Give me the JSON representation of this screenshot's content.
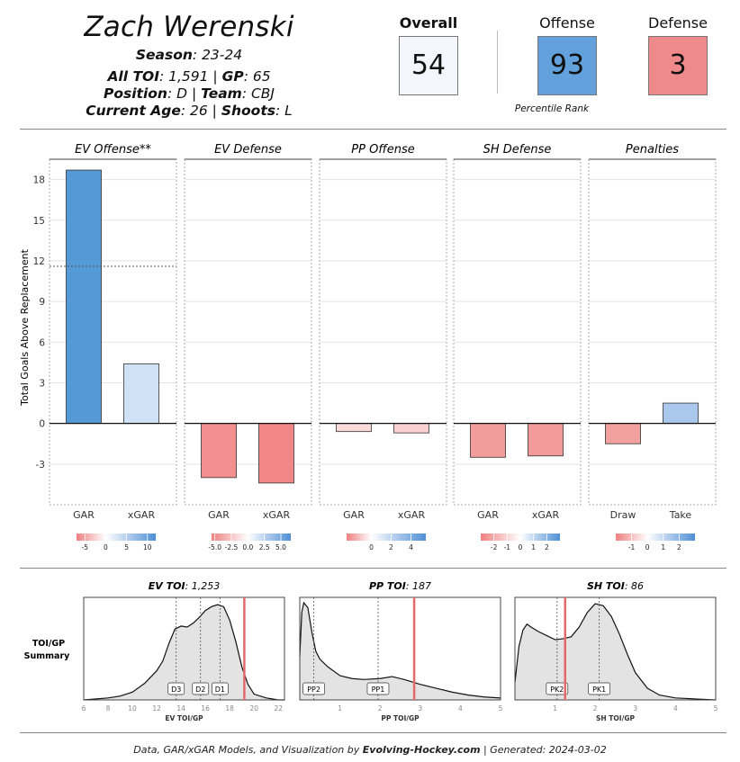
{
  "header": {
    "name": "Zach Werenski",
    "season_label": "Season",
    "season": ": 23-24",
    "toi_label": "All TOI",
    "toi": ": 1,591 | ",
    "gp_label": "GP",
    "gp": ": 65",
    "position_label": "Position",
    "position": ": D | ",
    "team_label": "Team",
    "team": ": CBJ",
    "age_label": "Current Age",
    "age": ": 26 | ",
    "shoots_label": "Shoots",
    "shoots": ": L"
  },
  "scores": {
    "overall_label": "Overall",
    "overall": "54",
    "offense_label": "Offense",
    "offense": "93",
    "defense_label": "Defense",
    "defense": "3",
    "percentile_label": "Percentile Rank",
    "colors": {
      "overall": "#f3f6fc",
      "offense": "#62a1dc",
      "defense": "#f08a8a"
    }
  },
  "footer": {
    "prefix": "Data, GAR/xGAR Models, and Visualization by ",
    "brand": "Evolving-Hockey.com",
    "suffix": " | Generated: 2024-03-02"
  },
  "chart_data": [
    {
      "type": "bar",
      "ylabel": "Total Goals Above Replacement",
      "ylim": [
        -6,
        19.5
      ],
      "yticks": [
        -3,
        0,
        3,
        6,
        9,
        12,
        15,
        18
      ],
      "reference_line": 11.6,
      "panels": [
        {
          "title": "EV Offense**",
          "categories": [
            "GAR",
            "xGAR"
          ],
          "values": [
            18.7,
            4.4
          ],
          "colors": [
            "#5599d6",
            "#d0e0f5"
          ],
          "legend": {
            "ticks": [
              "-5",
              "0",
              "5",
              "10"
            ],
            "min": -7,
            "max": 12
          }
        },
        {
          "title": "EV Defense",
          "categories": [
            "GAR",
            "xGAR"
          ],
          "values": [
            -4.0,
            -4.4
          ],
          "colors": [
            "#f3908f",
            "#f28787"
          ],
          "legend": {
            "ticks": [
              "-5.0",
              "-2.5",
              "0.0",
              "2.5",
              "5.0"
            ],
            "min": -5.5,
            "max": 6.5
          }
        },
        {
          "title": "PP Offense",
          "categories": [
            "GAR",
            "xGAR"
          ],
          "values": [
            -0.6,
            -0.7
          ],
          "colors": [
            "#fbdada",
            "#fad0d0"
          ],
          "legend": {
            "ticks": [
              "0",
              "2",
              "4"
            ],
            "min": -2.5,
            "max": 5.5
          }
        },
        {
          "title": "SH Defense",
          "categories": [
            "GAR",
            "xGAR"
          ],
          "values": [
            -2.5,
            -2.4
          ],
          "colors": [
            "#f39c9c",
            "#f29999"
          ],
          "legend": {
            "ticks": [
              "-2",
              "-1",
              "0",
              "1",
              "2"
            ],
            "min": -3,
            "max": 3
          }
        },
        {
          "title": "Penalties",
          "categories": [
            "Draw",
            "Take"
          ],
          "values": [
            -1.5,
            1.5
          ],
          "colors": [
            "#f3a0a0",
            "#a9c8ec"
          ],
          "legend": {
            "ticks": [
              "-1",
              "0",
              "1",
              "2"
            ],
            "min": -2,
            "max": 3
          }
        }
      ]
    },
    {
      "type": "area",
      "summary_label": "TOI/GP Summary",
      "panels": [
        {
          "title_label": "EV TOI",
          "title_value": ": 1,253",
          "xlabel": "EV TOI/GP",
          "xlim": [
            6,
            22.5
          ],
          "xticks": [
            6,
            8,
            10,
            12,
            14,
            16,
            18,
            20,
            22
          ],
          "player_value": 19.2,
          "markers": [
            {
              "label": "D3",
              "x": 13.6
            },
            {
              "label": "D2",
              "x": 15.6
            },
            {
              "label": "D1",
              "x": 17.2
            }
          ],
          "density_x": [
            6,
            8,
            9,
            10,
            11,
            12,
            12.5,
            13,
            13.5,
            14,
            14.5,
            15,
            15.5,
            16,
            16.5,
            17,
            17.5,
            18,
            18.5,
            19,
            19.5,
            20,
            21,
            22,
            22.5
          ],
          "density_y": [
            0.0,
            0.02,
            0.04,
            0.08,
            0.17,
            0.3,
            0.4,
            0.58,
            0.73,
            0.76,
            0.75,
            0.79,
            0.85,
            0.92,
            0.96,
            0.98,
            0.96,
            0.82,
            0.6,
            0.34,
            0.16,
            0.06,
            0.02,
            0.0,
            0.0
          ]
        },
        {
          "title_label": "PP TOI",
          "title_value": ": 187",
          "xlabel": "PP TOI/GP",
          "xlim": [
            0,
            5
          ],
          "xticks": [
            1,
            2,
            3,
            4,
            5
          ],
          "player_value": 2.85,
          "markers": [
            {
              "label": "PP2",
              "x": 0.35
            },
            {
              "label": "PP1",
              "x": 1.95
            }
          ],
          "density_x": [
            0,
            0.05,
            0.1,
            0.2,
            0.3,
            0.4,
            0.5,
            0.7,
            1.0,
            1.3,
            1.6,
            2.0,
            2.3,
            2.6,
            3.0,
            3.4,
            3.8,
            4.2,
            4.6,
            5.0
          ],
          "density_y": [
            0.45,
            0.9,
            1.0,
            0.95,
            0.7,
            0.5,
            0.42,
            0.34,
            0.25,
            0.22,
            0.21,
            0.22,
            0.24,
            0.21,
            0.16,
            0.12,
            0.08,
            0.05,
            0.03,
            0.02
          ]
        },
        {
          "title_label": "SH TOI",
          "title_value": ": 86",
          "xlabel": "SH TOI/GP",
          "xlim": [
            0,
            5
          ],
          "xticks": [
            1,
            2,
            3,
            4,
            5
          ],
          "player_value": 1.25,
          "markers": [
            {
              "label": "PK2",
              "x": 1.05
            },
            {
              "label": "PK1",
              "x": 2.1
            }
          ],
          "density_x": [
            0,
            0.1,
            0.2,
            0.3,
            0.4,
            0.6,
            0.8,
            1.0,
            1.2,
            1.4,
            1.6,
            1.8,
            2.0,
            2.2,
            2.4,
            2.6,
            2.8,
            3.0,
            3.3,
            3.6,
            4.0,
            4.5,
            5.0
          ],
          "density_y": [
            0.18,
            0.55,
            0.72,
            0.78,
            0.75,
            0.7,
            0.66,
            0.62,
            0.63,
            0.65,
            0.75,
            0.9,
            0.99,
            0.97,
            0.86,
            0.68,
            0.47,
            0.28,
            0.12,
            0.05,
            0.02,
            0.01,
            0.0
          ]
        }
      ]
    }
  ]
}
